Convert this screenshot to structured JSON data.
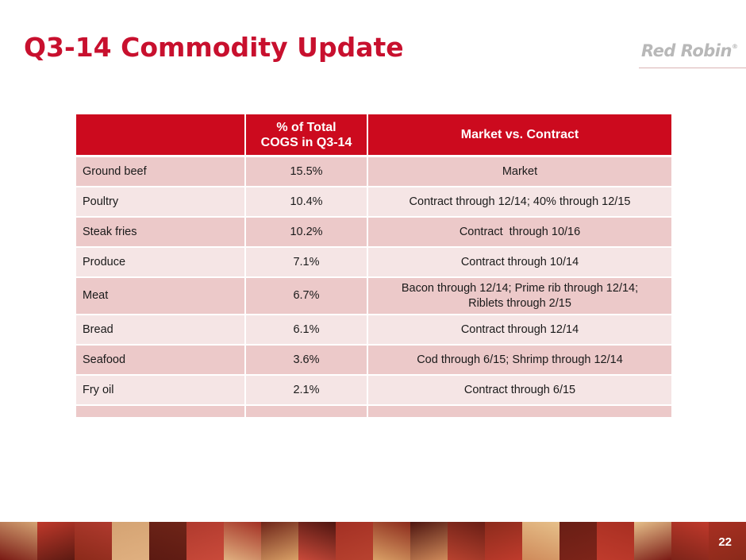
{
  "slide": {
    "title": "Q3-14 Commodity Update",
    "logo_text": "Red Robin",
    "logo_mark": "®",
    "page_number": "22",
    "brand_color": "#c8102e"
  },
  "table": {
    "headers": {
      "col1": "",
      "col2_line1": "% of Total",
      "col2_line2": "COGS in Q3-14",
      "col3": "Market vs. Contract"
    },
    "rows": [
      {
        "item": "Ground beef",
        "pct": "15.5%",
        "terms": "Market",
        "terms2": ""
      },
      {
        "item": "Poultry",
        "pct": "10.4%",
        "terms": "Contract through 12/14; 40% through 12/15",
        "terms2": ""
      },
      {
        "item": "Steak fries",
        "pct": "10.2%",
        "terms": "Contract  through 10/16",
        "terms2": ""
      },
      {
        "item": "Produce",
        "pct": "7.1%",
        "terms": "Contract through 10/14",
        "terms2": ""
      },
      {
        "item": "Meat",
        "pct": "6.7%",
        "terms": "Bacon through 12/14; Prime rib through 12/14;",
        "terms2": "Riblets through 2/15"
      },
      {
        "item": "Bread",
        "pct": "6.1%",
        "terms": "Contract through 12/14",
        "terms2": ""
      },
      {
        "item": "Seafood",
        "pct": "3.6%",
        "terms": "Cod through 6/15; Shrimp through 12/14",
        "terms2": ""
      },
      {
        "item": "Fry oil",
        "pct": "2.1%",
        "terms": "Contract through 6/15",
        "terms2": ""
      }
    ]
  },
  "filmstrip": {
    "description_colors": [
      "#7a1a14",
      "#c0392b",
      "#8b2a1a",
      "#d4a373",
      "#5c1a12",
      "#b03a2e",
      "#e0b080",
      "#6e2418",
      "#c94a3a",
      "#a33024",
      "#d9a066",
      "#4e1510",
      "#b8422f",
      "#8c2b1c",
      "#cf8a5a",
      "#691e15",
      "#bf3b2c",
      "#e6c08a",
      "#7d2419",
      "#a82f22"
    ]
  }
}
